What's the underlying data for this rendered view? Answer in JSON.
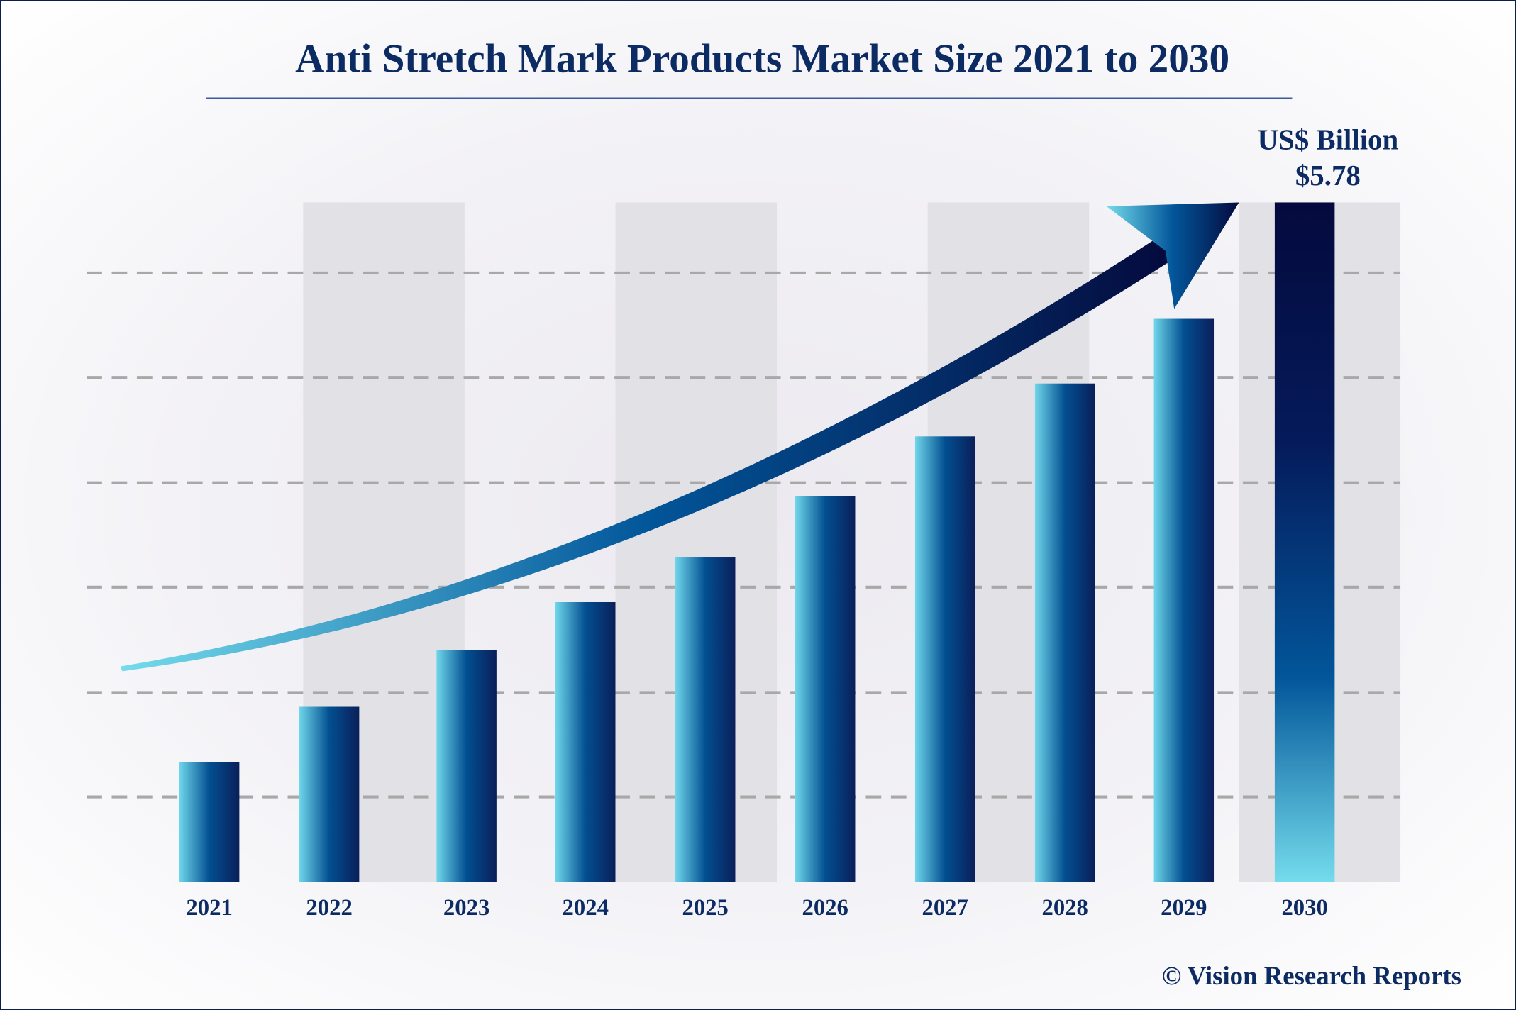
{
  "chart_data": {
    "type": "bar",
    "title": "Anti Stretch Mark Products Market Size 2021 to 2030",
    "unit_label": "US$ Billion",
    "highlight_label": "$5.78",
    "categories": [
      "2021",
      "2022",
      "2023",
      "2024",
      "2025",
      "2026",
      "2027",
      "2028",
      "2029",
      "2030"
    ],
    "values": [
      1.02,
      1.49,
      1.97,
      2.38,
      2.76,
      3.28,
      3.79,
      4.24,
      4.79,
      5.78
    ],
    "ylim": [
      0,
      5.78
    ],
    "grid": "dashed horizontal",
    "trend_arrow": true,
    "colors": {
      "title": "#0d2b63",
      "bar_light": "#6fd6ea",
      "bar_mid": "#024f91",
      "bar_dark": "#040a3d",
      "band": "#e2e2e6",
      "grid": "#a8a8a8"
    }
  },
  "footer": {
    "copyright": "© Vision Research Reports"
  }
}
